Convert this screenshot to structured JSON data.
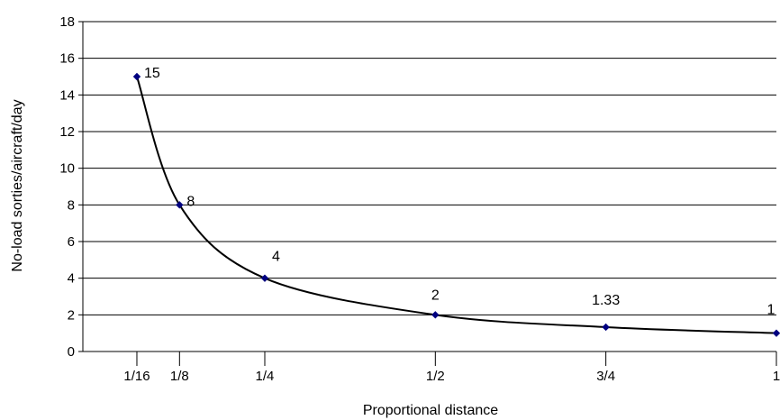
{
  "chart_data": {
    "type": "line",
    "title": "",
    "xlabel": "Proportional distance",
    "ylabel": "No-load sorties/aircraft/day",
    "x": [
      0.0625,
      0.125,
      0.25,
      0.5,
      0.75,
      1
    ],
    "x_tick_labels": [
      "1/16",
      "1/8",
      "1/4",
      "1/2",
      "3/4",
      "1"
    ],
    "series": [
      {
        "values": [
          15,
          8,
          4,
          2,
          1.33,
          1
        ],
        "data_labels": [
          "15",
          "8",
          "4",
          "2",
          "1.33",
          "1"
        ],
        "smooth": true
      }
    ],
    "xlim": [
      -0.0167,
      1
    ],
    "ylim": [
      0,
      18
    ],
    "y_ticks": [
      0,
      2,
      4,
      6,
      8,
      10,
      12,
      14,
      16,
      18
    ],
    "y_tick_labels": [
      "0",
      "2",
      "4",
      "6",
      "8",
      "10",
      "12",
      "14",
      "16",
      "18"
    ],
    "grid": "horizontal",
    "legend": "none",
    "colors": {
      "line": "#000000",
      "marker": "#000080",
      "grid": "#000000"
    }
  }
}
